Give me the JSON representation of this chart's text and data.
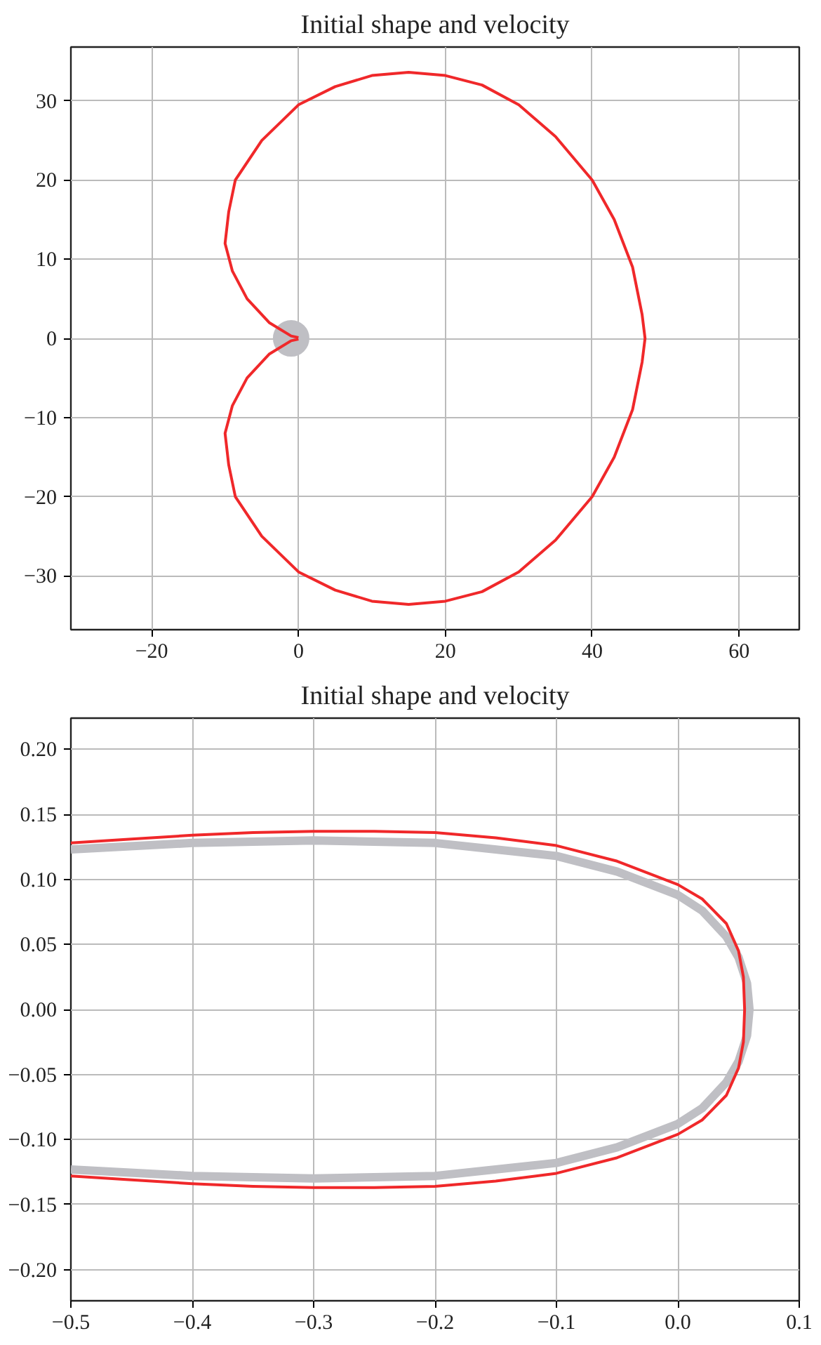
{
  "chart_data": [
    {
      "type": "line",
      "title": "Initial shape and velocity",
      "grid": true,
      "xlim": [
        -31,
        68.2
      ],
      "ylim": [
        -36.8,
        36.8
      ],
      "xticks": [
        {
          "value": -20,
          "label": "−20"
        },
        0,
        20,
        40,
        60
      ],
      "yticks": [
        {
          "value": -30,
          "label": "−30"
        },
        {
          "value": -20,
          "label": "−20"
        },
        {
          "value": -10,
          "label": "−10"
        },
        0,
        10,
        20,
        30
      ],
      "series": [
        {
          "type": "scatter",
          "marker": "circle",
          "color": "#bfbfc4",
          "x": [
            -1
          ],
          "values": [
            0
          ]
        },
        {
          "color": "#f0282a",
          "x": [
            0,
            -1,
            -4,
            -7,
            -9,
            -10,
            -9.5,
            -8.6,
            -5,
            0,
            5,
            10,
            15,
            20,
            25,
            30,
            35,
            40,
            43,
            45.5,
            46.8,
            47.2,
            46.8,
            45.5,
            43,
            40,
            35,
            30,
            25,
            20,
            15,
            10,
            5,
            0,
            -5,
            -8.6,
            -9.5,
            -10,
            -9,
            -7,
            -4,
            -1,
            0
          ],
          "values": [
            0.1,
            0.3,
            2,
            5,
            8.5,
            12,
            16,
            20,
            25,
            29.5,
            31.8,
            33.2,
            33.6,
            33.2,
            32,
            29.5,
            25.5,
            20,
            15,
            9,
            3,
            0,
            -3,
            -9,
            -15,
            -20,
            -25.5,
            -29.5,
            -32,
            -33.2,
            -33.6,
            -33.2,
            -31.8,
            -29.5,
            -25,
            -20,
            -16,
            -12,
            -8.5,
            -5,
            -2,
            -0.3,
            -0.1
          ]
        }
      ]
    },
    {
      "type": "line",
      "title": "Initial shape and velocity",
      "grid": true,
      "xlim": [
        -0.5,
        0.1
      ],
      "ylim": [
        -0.224,
        0.224
      ],
      "xticks": [
        {
          "value": -0.5,
          "label": "−0.5"
        },
        {
          "value": -0.4,
          "label": "−0.4"
        },
        {
          "value": -0.3,
          "label": "−0.3"
        },
        {
          "value": -0.2,
          "label": "−0.2"
        },
        {
          "value": -0.1,
          "label": "−0.1"
        },
        {
          "value": 0,
          "label": "0.0"
        },
        0.1
      ],
      "yticks": [
        {
          "value": -0.2,
          "label": "−0.20"
        },
        {
          "value": -0.15,
          "label": "−0.15"
        },
        {
          "value": -0.1,
          "label": "−0.10"
        },
        {
          "value": -0.05,
          "label": "−0.05"
        },
        {
          "value": 0,
          "label": "0.00"
        },
        {
          "value": 0.05,
          "label": "0.05"
        },
        {
          "value": 0.1,
          "label": "0.10"
        },
        {
          "value": 0.15,
          "label": "0.15"
        },
        {
          "value": 0.2,
          "label": "0.20"
        }
      ],
      "series": [
        {
          "color": "#bfbfc4",
          "x": [
            -0.5,
            -0.4,
            -0.3,
            -0.2,
            -0.1,
            -0.05,
            0,
            0.02,
            0.04,
            0.05,
            0.057,
            0.059,
            0.057,
            0.05,
            0.04,
            0.02,
            0,
            -0.05,
            -0.1,
            -0.2,
            -0.3,
            -0.4,
            -0.5
          ],
          "values": [
            0.123,
            0.128,
            0.13,
            0.128,
            0.118,
            0.106,
            0.088,
            0.076,
            0.056,
            0.04,
            0.02,
            0,
            -0.02,
            -0.04,
            -0.056,
            -0.076,
            -0.088,
            -0.106,
            -0.118,
            -0.128,
            -0.13,
            -0.128,
            -0.123
          ]
        },
        {
          "color": "#f0282a",
          "x": [
            -0.5,
            -0.45,
            -0.4,
            -0.35,
            -0.3,
            -0.25,
            -0.2,
            -0.15,
            -0.1,
            -0.05,
            0,
            0.02,
            0.04,
            0.05,
            0.054,
            0.055,
            0.054,
            0.05,
            0.04,
            0.02,
            0,
            -0.05,
            -0.1,
            -0.15,
            -0.2,
            -0.25,
            -0.3,
            -0.35,
            -0.4,
            -0.45,
            -0.5
          ],
          "values": [
            0.128,
            0.131,
            0.134,
            0.136,
            0.137,
            0.137,
            0.136,
            0.132,
            0.126,
            0.114,
            0.096,
            0.085,
            0.066,
            0.045,
            0.025,
            0,
            -0.025,
            -0.045,
            -0.066,
            -0.085,
            -0.096,
            -0.114,
            -0.126,
            -0.132,
            -0.136,
            -0.137,
            -0.137,
            -0.136,
            -0.134,
            -0.131,
            -0.128
          ]
        }
      ]
    }
  ]
}
